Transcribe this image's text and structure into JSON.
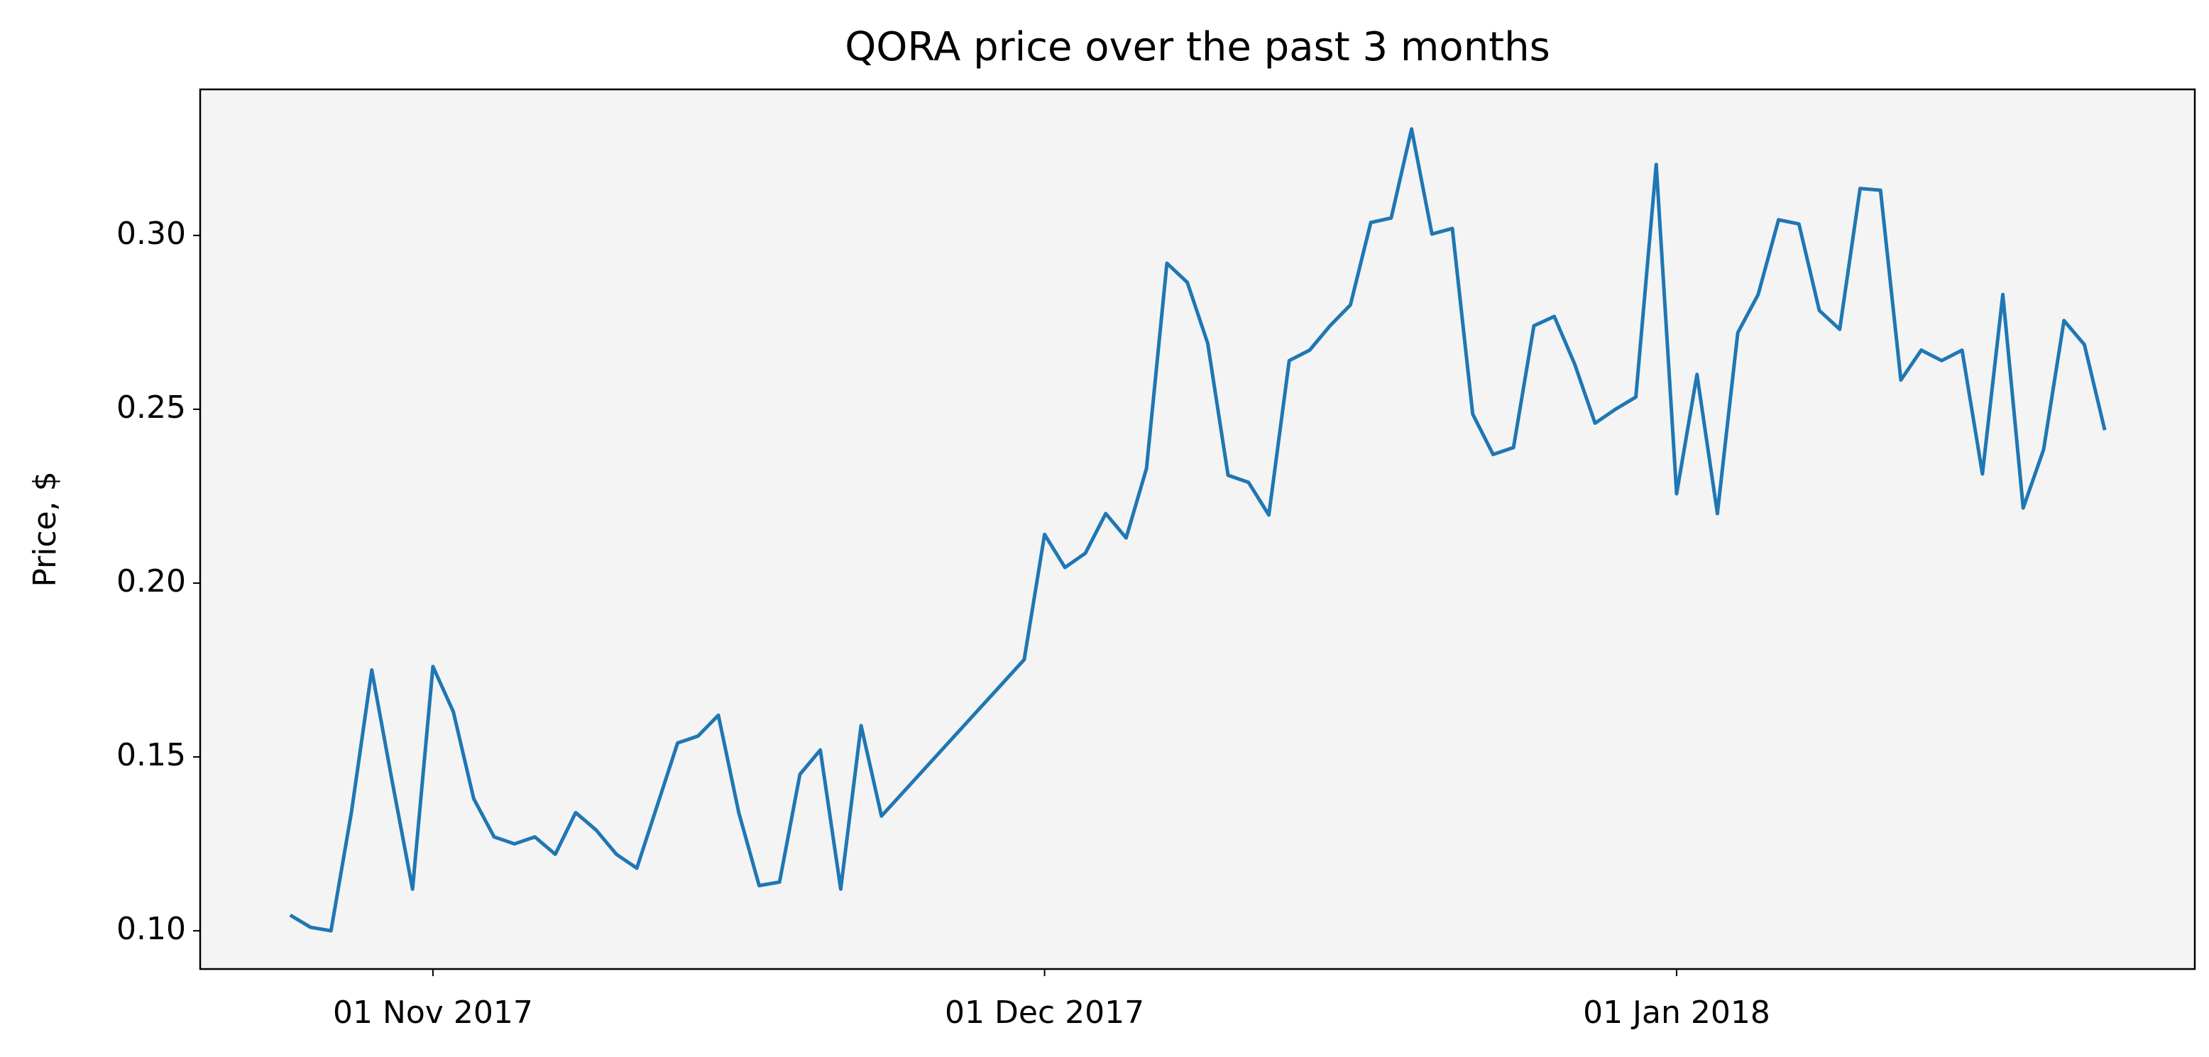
{
  "chart_data": {
    "type": "line",
    "title": "QORA price over the past 3 months",
    "y_label": "Price, $",
    "x": [
      "2017-10-25",
      "2017-10-26",
      "2017-10-27",
      "2017-10-28",
      "2017-10-29",
      "2017-10-30",
      "2017-10-31",
      "2017-11-01",
      "2017-11-02",
      "2017-11-03",
      "2017-11-04",
      "2017-11-05",
      "2017-11-06",
      "2017-11-07",
      "2017-11-08",
      "2017-11-09",
      "2017-11-10",
      "2017-11-11",
      "2017-11-12",
      "2017-11-13",
      "2017-11-14",
      "2017-11-15",
      "2017-11-16",
      "2017-11-17",
      "2017-11-18",
      "2017-11-19",
      "2017-11-20",
      "2017-11-21",
      "2017-11-22",
      "2017-11-23",
      "2017-11-30",
      "2017-12-01",
      "2017-12-02",
      "2017-12-03",
      "2017-12-04",
      "2017-12-05",
      "2017-12-06",
      "2017-12-07",
      "2017-12-08",
      "2017-12-09",
      "2017-12-10",
      "2017-12-11",
      "2017-12-12",
      "2017-12-13",
      "2017-12-14",
      "2017-12-15",
      "2017-12-16",
      "2017-12-17",
      "2017-12-18",
      "2017-12-19",
      "2017-12-20",
      "2017-12-21",
      "2017-12-22",
      "2017-12-23",
      "2017-12-24",
      "2017-12-25",
      "2017-12-26",
      "2017-12-27",
      "2017-12-28",
      "2017-12-29",
      "2017-12-30",
      "2017-12-31",
      "2018-01-01",
      "2018-01-02",
      "2018-01-03",
      "2018-01-04",
      "2018-01-05",
      "2018-01-06",
      "2018-01-07",
      "2018-01-08",
      "2018-01-09",
      "2018-01-10",
      "2018-01-11",
      "2018-01-12",
      "2018-01-13",
      "2018-01-14",
      "2018-01-15",
      "2018-01-16",
      "2018-01-17",
      "2018-01-18",
      "2018-01-19",
      "2018-01-20",
      "2018-01-21",
      "2018-01-22"
    ],
    "values": [
      0.1045,
      0.101,
      0.1,
      0.134,
      0.175,
      0.143,
      0.112,
      0.176,
      0.163,
      0.138,
      0.127,
      0.125,
      0.127,
      0.122,
      0.134,
      0.129,
      0.122,
      0.118,
      0.136,
      0.154,
      0.156,
      0.162,
      0.134,
      0.113,
      0.114,
      0.145,
      0.152,
      0.112,
      0.159,
      0.133,
      0.178,
      0.214,
      0.2045,
      0.2086,
      0.22,
      0.213,
      0.233,
      0.292,
      0.2865,
      0.269,
      0.231,
      0.229,
      0.2196,
      0.264,
      0.267,
      0.274,
      0.28,
      0.3037,
      0.305,
      0.3306,
      0.3004,
      0.302,
      0.2486,
      0.237,
      0.239,
      0.274,
      0.2767,
      0.263,
      0.246,
      0.25,
      0.2535,
      0.3204,
      0.2257,
      0.26,
      0.22,
      0.272,
      0.283,
      0.3045,
      0.3033,
      0.2784,
      0.273,
      0.3135,
      0.313,
      0.2584,
      0.267,
      0.264,
      0.267,
      0.2314,
      0.283,
      0.2216,
      0.2384,
      0.2755,
      0.2686,
      0.244
    ],
    "color": "#1f77b4",
    "xlim": [
      "2017-10-20T14:00",
      "2018-01-26T10:00"
    ],
    "xticks": [
      {
        "value": "2017-11-01",
        "label": "01 Nov 2017"
      },
      {
        "value": "2017-12-01",
        "label": "01 Dec 2017"
      },
      {
        "value": "2018-01-01",
        "label": "01 Jan 2018"
      }
    ],
    "ylim": [
      0.089,
      0.342
    ],
    "yticks": [
      {
        "value": 0.1,
        "label": "0.10"
      },
      {
        "value": 0.15,
        "label": "0.15"
      },
      {
        "value": 0.2,
        "label": "0.20"
      },
      {
        "value": 0.25,
        "label": "0.25"
      },
      {
        "value": 0.3,
        "label": "0.30"
      }
    ],
    "grid": false
  }
}
